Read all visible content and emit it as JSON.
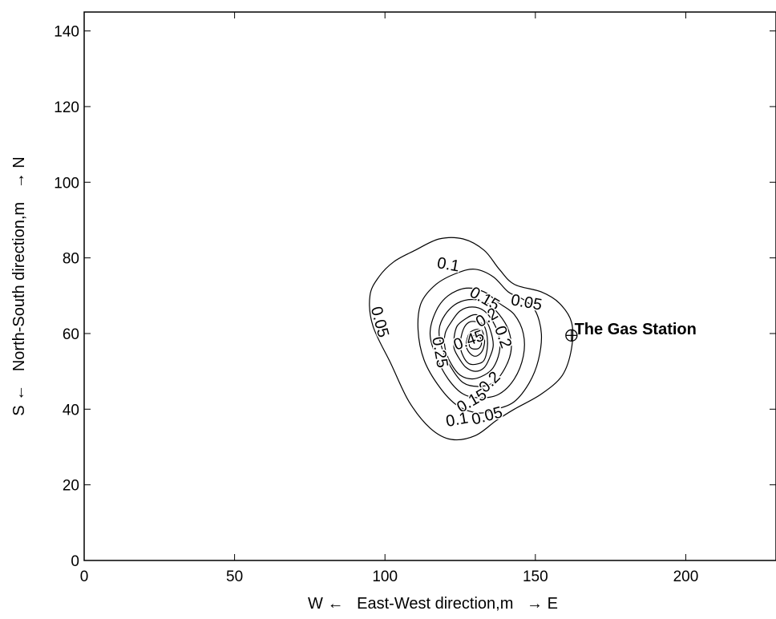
{
  "chart_data": {
    "type": "contour",
    "title": "",
    "xlabel": "W ←   East-West direction,m   → E",
    "ylabel": "S ←   North-South direction,m   → N",
    "xlim": [
      0,
      230
    ],
    "ylim": [
      0,
      145
    ],
    "xticks": [
      0,
      50,
      100,
      150,
      200
    ],
    "yticks": [
      0,
      20,
      40,
      60,
      80,
      100,
      120,
      140
    ],
    "grid": false,
    "contours": [
      {
        "level": 0.05,
        "label": "0.05",
        "points": [
          [
            95,
            70
          ],
          [
            98,
            75
          ],
          [
            103,
            79
          ],
          [
            110,
            82
          ],
          [
            118,
            85
          ],
          [
            126,
            85
          ],
          [
            133,
            82
          ],
          [
            138,
            77
          ],
          [
            143,
            73
          ],
          [
            152,
            71
          ],
          [
            158,
            68
          ],
          [
            162,
            63
          ],
          [
            162,
            56
          ],
          [
            159,
            49
          ],
          [
            152,
            44
          ],
          [
            143,
            40
          ],
          [
            137,
            37
          ],
          [
            130,
            33
          ],
          [
            122,
            32
          ],
          [
            115,
            35
          ],
          [
            108,
            42
          ],
          [
            102,
            52
          ],
          [
            96,
            62
          ]
        ]
      },
      {
        "level": 0.1,
        "label": "0.1",
        "points": [
          [
            112,
            68
          ],
          [
            117,
            73
          ],
          [
            124,
            76
          ],
          [
            130,
            77
          ],
          [
            136,
            75
          ],
          [
            141,
            71
          ],
          [
            146,
            69
          ],
          [
            150,
            66
          ],
          [
            152,
            60
          ],
          [
            151,
            53
          ],
          [
            148,
            47
          ],
          [
            143,
            42
          ],
          [
            137,
            40
          ],
          [
            131,
            39
          ],
          [
            124,
            41
          ],
          [
            118,
            46
          ],
          [
            113,
            53
          ],
          [
            111,
            61
          ]
        ]
      },
      {
        "level": 0.15,
        "label": "0.15",
        "points": [
          [
            117,
            66
          ],
          [
            121,
            70
          ],
          [
            127,
            72
          ],
          [
            133,
            71
          ],
          [
            138,
            68
          ],
          [
            143,
            65
          ],
          [
            146,
            60
          ],
          [
            146,
            54
          ],
          [
            143,
            48
          ],
          [
            138,
            44
          ],
          [
            132,
            43
          ],
          [
            126,
            44
          ],
          [
            121,
            48
          ],
          [
            117,
            54
          ],
          [
            115,
            60
          ]
        ]
      },
      {
        "level": 0.2,
        "label": "0.2",
        "points": [
          [
            120,
            65
          ],
          [
            124,
            68
          ],
          [
            129,
            69
          ],
          [
            134,
            68
          ],
          [
            138,
            65
          ],
          [
            141,
            61
          ],
          [
            142,
            56
          ],
          [
            140,
            51
          ],
          [
            136,
            47
          ],
          [
            131,
            46
          ],
          [
            126,
            47
          ],
          [
            122,
            51
          ],
          [
            119,
            56
          ],
          [
            118,
            61
          ]
        ]
      },
      {
        "level": 0.25,
        "label": "0.25",
        "points": [
          [
            122,
            63
          ],
          [
            125,
            66
          ],
          [
            129,
            67
          ],
          [
            133,
            66
          ],
          [
            136,
            63
          ],
          [
            138,
            59
          ],
          [
            138,
            55
          ],
          [
            136,
            51
          ],
          [
            133,
            49
          ],
          [
            129,
            48
          ],
          [
            125,
            49
          ],
          [
            122,
            52
          ],
          [
            120,
            56
          ],
          [
            120,
            60
          ]
        ]
      },
      {
        "level": 0.3,
        "label": "",
        "points": [
          [
            124,
            62
          ],
          [
            127,
            64
          ],
          [
            130,
            65
          ],
          [
            133,
            64
          ],
          [
            135,
            61
          ],
          [
            136,
            57
          ],
          [
            135,
            54
          ],
          [
            133,
            51
          ],
          [
            130,
            50
          ],
          [
            127,
            51
          ],
          [
            125,
            53
          ],
          [
            123,
            56
          ],
          [
            123,
            59
          ]
        ]
      },
      {
        "level": 0.35,
        "label": "",
        "points": [
          [
            126,
            61
          ],
          [
            128,
            63
          ],
          [
            131,
            63
          ],
          [
            133,
            62
          ],
          [
            134,
            59
          ],
          [
            134,
            56
          ],
          [
            133,
            53
          ],
          [
            131,
            52
          ],
          [
            128,
            52
          ],
          [
            126,
            54
          ],
          [
            125,
            57
          ]
        ]
      },
      {
        "level": 0.4,
        "label": "",
        "points": [
          [
            128,
            60
          ],
          [
            130,
            61
          ],
          [
            132,
            61
          ],
          [
            133,
            59
          ],
          [
            133,
            57
          ],
          [
            132,
            55
          ],
          [
            130,
            54
          ],
          [
            128,
            55
          ],
          [
            127,
            57
          ]
        ]
      },
      {
        "level": 0.45,
        "label": "0.45",
        "points": [
          [
            129,
            59
          ],
          [
            131,
            60
          ],
          [
            132,
            58
          ],
          [
            132,
            57
          ],
          [
            131,
            56
          ],
          [
            129,
            56
          ],
          [
            128,
            57
          ]
        ]
      }
    ],
    "contour_labels": [
      {
        "text": "0.1",
        "x": 121,
        "y": 78,
        "angle": 10
      },
      {
        "text": "0.05",
        "x": 98,
        "y": 63,
        "angle": 75
      },
      {
        "text": "0.15",
        "x": 133,
        "y": 69,
        "angle": 30
      },
      {
        "text": "0.05",
        "x": 147,
        "y": 68,
        "angle": 10
      },
      {
        "text": "0.2",
        "x": 134,
        "y": 64,
        "angle": -30
      },
      {
        "text": "0.25",
        "x": 118,
        "y": 55,
        "angle": 80
      },
      {
        "text": "0.45",
        "x": 128,
        "y": 58,
        "angle": -20
      },
      {
        "text": "0.2",
        "x": 139,
        "y": 59,
        "angle": 70
      },
      {
        "text": "0.2",
        "x": 135,
        "y": 47,
        "angle": -45
      },
      {
        "text": "0.15",
        "x": 129,
        "y": 42,
        "angle": -30
      },
      {
        "text": "0.1",
        "x": 124,
        "y": 37,
        "angle": -10
      },
      {
        "text": "0.05",
        "x": 134,
        "y": 38,
        "angle": -15
      }
    ],
    "marker": {
      "x": 162,
      "y": 59.5,
      "symbol": "⊕"
    },
    "annotations": [
      {
        "text": "The Gas Station",
        "x": 163,
        "y": 61
      }
    ]
  }
}
